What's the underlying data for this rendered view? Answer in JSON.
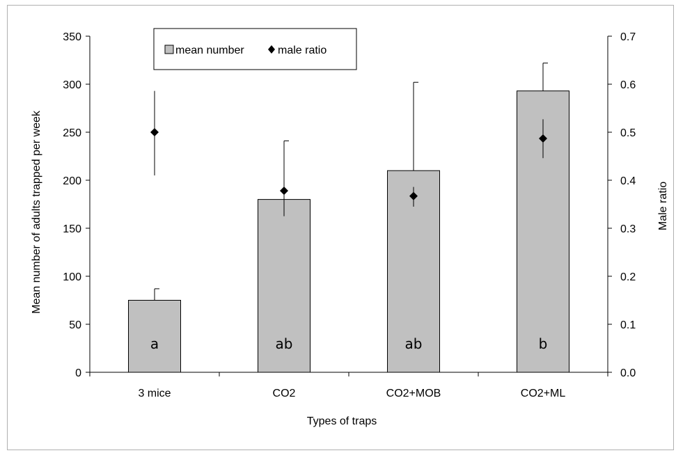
{
  "chart_data": {
    "type": "bar",
    "categories": [
      "3 mice",
      "CO2",
      "CO2+MOB",
      "CO2+ML"
    ],
    "series": [
      {
        "name": "mean number",
        "axis": "left",
        "kind": "bar",
        "color": "#c0c0c0",
        "values": [
          75,
          180,
          210,
          293
        ],
        "error_upper": [
          87,
          241,
          302,
          322
        ],
        "significance_letters": [
          "a",
          "ab",
          "ab",
          "b"
        ]
      },
      {
        "name": "male ratio",
        "axis": "right",
        "kind": "marker",
        "marker": "diamond",
        "color": "#000000",
        "values": [
          0.5,
          0.378,
          0.367,
          0.487
        ],
        "error_lower": [
          0.41,
          0.325,
          0.345,
          0.446
        ],
        "error_upper": [
          0.586,
          0.428,
          0.386,
          0.527
        ]
      }
    ],
    "xlabel": "Types of traps",
    "ylabel": "Mean number of adults trapped per week",
    "y2label": "Male ratio",
    "ylim": [
      0,
      350
    ],
    "y2lim": [
      0,
      0.7
    ],
    "yticks": [
      "0",
      "50",
      "100",
      "150",
      "200",
      "250",
      "300",
      "350"
    ],
    "y2ticks": [
      "0.0",
      "0.1",
      "0.2",
      "0.3",
      "0.4",
      "0.5",
      "0.6",
      "0.7"
    ],
    "grid": false,
    "legend": {
      "placement": "top-left",
      "entries": [
        "mean number",
        "male ratio"
      ]
    }
  }
}
